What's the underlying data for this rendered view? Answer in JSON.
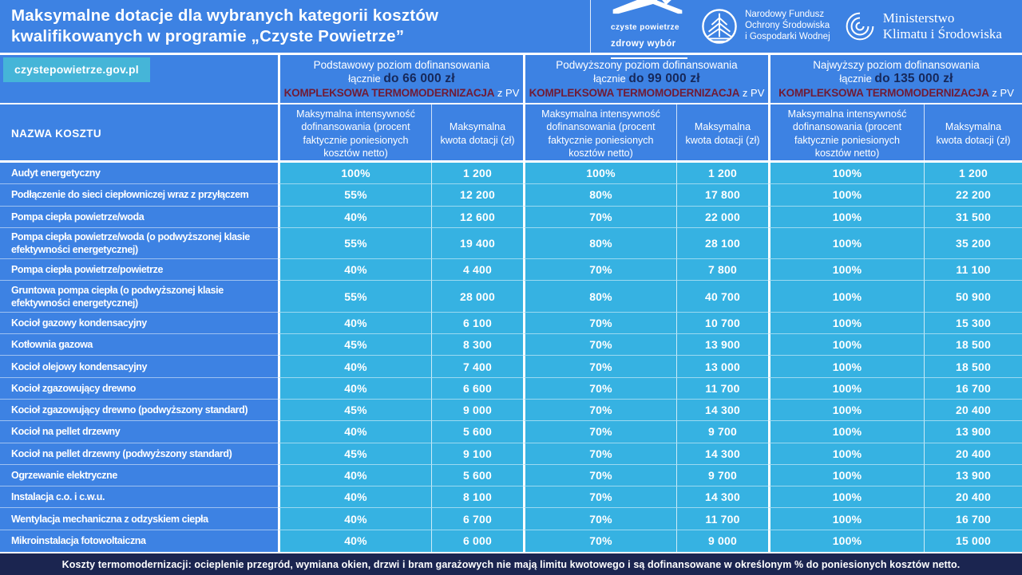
{
  "poster": {
    "title": "Maksymalne dotacje dla wybranych kategorii kosztów kwalifikowanych w programie „Czyste Powietrze”",
    "site_badge": "czystepowietrze.gov.pl",
    "logos": {
      "czyste_powietrze": {
        "line1": "czyste powietrze",
        "line2": "zdrowy wybór"
      },
      "nfosigw": {
        "line1": "Narodowy Fundusz",
        "line2": "Ochrony Środowiska",
        "line3": "i Gospodarki Wodnej"
      },
      "ministry": {
        "line1": "Ministerstwo",
        "line2": "Klimatu i Środowiska"
      }
    },
    "footer": "Koszty termomodernizacji: ocieplenie przegród, wymiana okien, drzwi i bram garażowych nie mają limitu kwotowego i są dofinansowane w określonym % do poniesionych kosztów netto."
  },
  "table": {
    "row_header": "NAZWA KOSZTU",
    "groups": [
      {
        "level": "Podstawowy poziom dofinansowania",
        "lacznie": "łącznie",
        "amount": "do 66 000 zł",
        "emphasis": "KOMPLEKSOWA TERMOMODERNIZACJA",
        "suffix": "z PV"
      },
      {
        "level": "Podwyższony poziom dofinansowania",
        "lacznie": "łącznie",
        "amount": "do 99 000 zł",
        "emphasis": "KOMPLEKSOWA TERMOMODERNIZACJA",
        "suffix": "z PV"
      },
      {
        "level": "Najwyższy poziom dofinansowania",
        "lacznie": "łącznie",
        "amount": "do 135 000 zł",
        "emphasis": "KOMPLEKSOWA TERMOMODERNIZACJA",
        "suffix": "z PV"
      }
    ],
    "subheaders": {
      "intensity": "Maksymalna intensywność dofinansowania (procent faktycznie poniesionych kosztów netto)",
      "amount": "Maksymalna kwota dotacji (zł)"
    },
    "rows": [
      {
        "name": "Audyt energetyczny",
        "values": [
          "100%",
          "1 200",
          "100%",
          "1 200",
          "100%",
          "1 200"
        ]
      },
      {
        "name": "Podłączenie do sieci ciepłowniczej wraz z przyłączem",
        "values": [
          "55%",
          "12 200",
          "80%",
          "17 800",
          "100%",
          "22 200"
        ]
      },
      {
        "name": "Pompa ciepła powietrze/woda",
        "values": [
          "40%",
          "12 600",
          "70%",
          "22 000",
          "100%",
          "31 500"
        ]
      },
      {
        "name": "Pompa ciepła powietrze/woda (o podwyższonej klasie efektywności energetycznej)",
        "values": [
          "55%",
          "19 400",
          "80%",
          "28 100",
          "100%",
          "35 200"
        ]
      },
      {
        "name": "Pompa ciepła powietrze/powietrze",
        "values": [
          "40%",
          "4 400",
          "70%",
          "7 800",
          "100%",
          "11 100"
        ]
      },
      {
        "name": "Gruntowa pompa ciepła (o podwyższonej klasie efektywności energetycznej)",
        "values": [
          "55%",
          "28 000",
          "80%",
          "40 700",
          "100%",
          "50 900"
        ]
      },
      {
        "name": "Kocioł gazowy kondensacyjny",
        "values": [
          "40%",
          "6 100",
          "70%",
          "10 700",
          "100%",
          "15 300"
        ]
      },
      {
        "name": "Kotłownia gazowa",
        "values": [
          "45%",
          "8 300",
          "70%",
          "13 900",
          "100%",
          "18 500"
        ]
      },
      {
        "name": "Kocioł olejowy kondensacyjny",
        "values": [
          "40%",
          "7 400",
          "70%",
          "13 000",
          "100%",
          "18 500"
        ]
      },
      {
        "name": "Kocioł zgazowujący drewno",
        "values": [
          "40%",
          "6 600",
          "70%",
          "11 700",
          "100%",
          "16 700"
        ]
      },
      {
        "name": "Kocioł zgazowujący drewno (podwyższony standard)",
        "values": [
          "45%",
          "9 000",
          "70%",
          "14 300",
          "100%",
          "20 400"
        ]
      },
      {
        "name": "Kocioł na pellet drzewny",
        "values": [
          "40%",
          "5 600",
          "70%",
          "9 700",
          "100%",
          "13 900"
        ]
      },
      {
        "name": "Kocioł na pellet drzewny (podwyższony standard)",
        "values": [
          "45%",
          "9 100",
          "70%",
          "14 300",
          "100%",
          "20 400"
        ]
      },
      {
        "name": "Ogrzewanie elektryczne",
        "values": [
          "40%",
          "5 600",
          "70%",
          "9 700",
          "100%",
          "13 900"
        ]
      },
      {
        "name": "Instalacja c.o. i c.w.u.",
        "values": [
          "40%",
          "8 100",
          "70%",
          "14 300",
          "100%",
          "20 400"
        ]
      },
      {
        "name": "Wentylacja mechaniczna z odzyskiem ciepła",
        "values": [
          "40%",
          "6 700",
          "70%",
          "11 700",
          "100%",
          "16 700"
        ]
      },
      {
        "name": "Mikroinstalacja fotowoltaiczna",
        "values": [
          "40%",
          "6 000",
          "70%",
          "9 000",
          "100%",
          "15 000"
        ]
      }
    ]
  },
  "colors": {
    "background_blue": "#3d82e3",
    "data_cyan": "#36b2e2",
    "badge_cyan": "#45b5d8",
    "footer_navy": "#1b2550",
    "amount_navy": "#16285a",
    "emphasis_maroon": "#701b35"
  }
}
